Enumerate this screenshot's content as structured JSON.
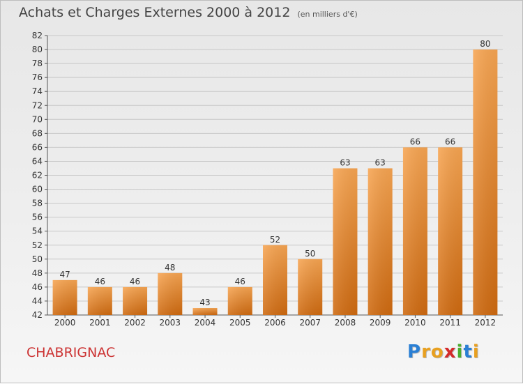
{
  "chart_data": {
    "type": "bar",
    "title": "Achats et Charges Externes 2000 à 2012",
    "unit": "(en milliers d'€)",
    "categories": [
      "2000",
      "2001",
      "2002",
      "2003",
      "2004",
      "2005",
      "2006",
      "2007",
      "2008",
      "2009",
      "2010",
      "2011",
      "2012"
    ],
    "values": [
      47,
      46,
      46,
      48,
      43,
      46,
      52,
      50,
      63,
      63,
      66,
      66,
      80
    ],
    "ylim": [
      42,
      82
    ],
    "yticks": [
      42,
      44,
      46,
      48,
      50,
      52,
      54,
      56,
      58,
      60,
      62,
      64,
      66,
      68,
      70,
      72,
      74,
      76,
      78,
      80,
      82
    ],
    "grid": true,
    "xlabel": "",
    "ylabel": ""
  },
  "commune": "CHABRIGNAC",
  "logo": {
    "text": "Proxiti",
    "letters": [
      {
        "ch": "P",
        "color": "#2a7fd4"
      },
      {
        "ch": "r",
        "color": "#e8a020"
      },
      {
        "ch": "o",
        "color": "#e8a020"
      },
      {
        "ch": "x",
        "color": "#d42a2a"
      },
      {
        "ch": "i",
        "color": "#4cae2e"
      },
      {
        "ch": "t",
        "color": "#2a7fd4"
      },
      {
        "ch": "i",
        "color": "#e8a020"
      }
    ]
  },
  "colors": {
    "bar_top": "#f7a552",
    "bar_bottom": "#cf6a10",
    "grid": "#c8c8c8",
    "axis": "#555555",
    "text": "#333333"
  }
}
